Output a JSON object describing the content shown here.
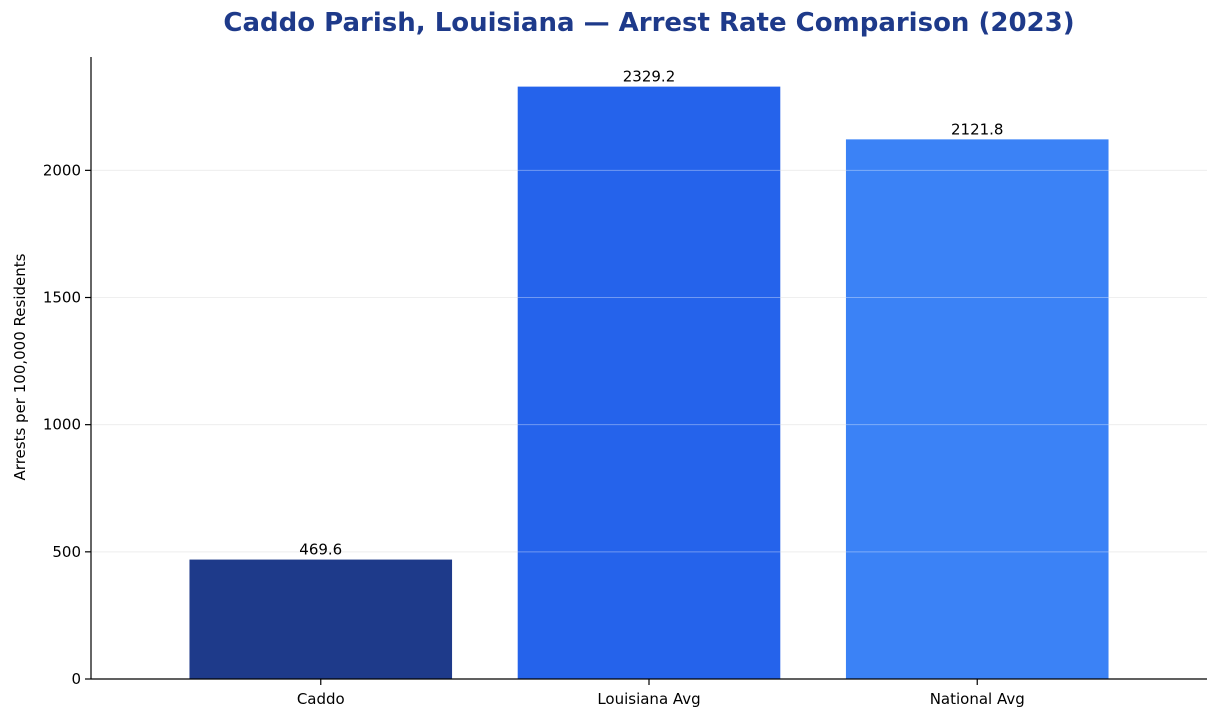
{
  "chart_data": {
    "type": "bar",
    "title": "Caddo Parish, Louisiana — Arrest Rate Comparison (2023)",
    "xlabel": "",
    "ylabel": "Arrests per 100,000 Residents",
    "categories": [
      "Caddo",
      "Louisiana Avg",
      "National Avg"
    ],
    "values": [
      469.6,
      2329.2,
      2121.8
    ],
    "value_labels": [
      "469.6",
      "2329.2",
      "2121.8"
    ],
    "bar_colors": [
      "#1e3a8a",
      "#2563eb",
      "#3b82f6"
    ],
    "ylim": [
      0,
      2445.66
    ],
    "yticks": [
      0,
      500,
      1000,
      1500,
      2000
    ],
    "ytick_labels": [
      "0",
      "500",
      "1000",
      "1500",
      "2000"
    ],
    "grid": "y-axis, light gray",
    "legend": "none",
    "colors": {
      "title": "#1e3a8a",
      "grid": "#e6e6e6",
      "axis": "#000000"
    }
  }
}
